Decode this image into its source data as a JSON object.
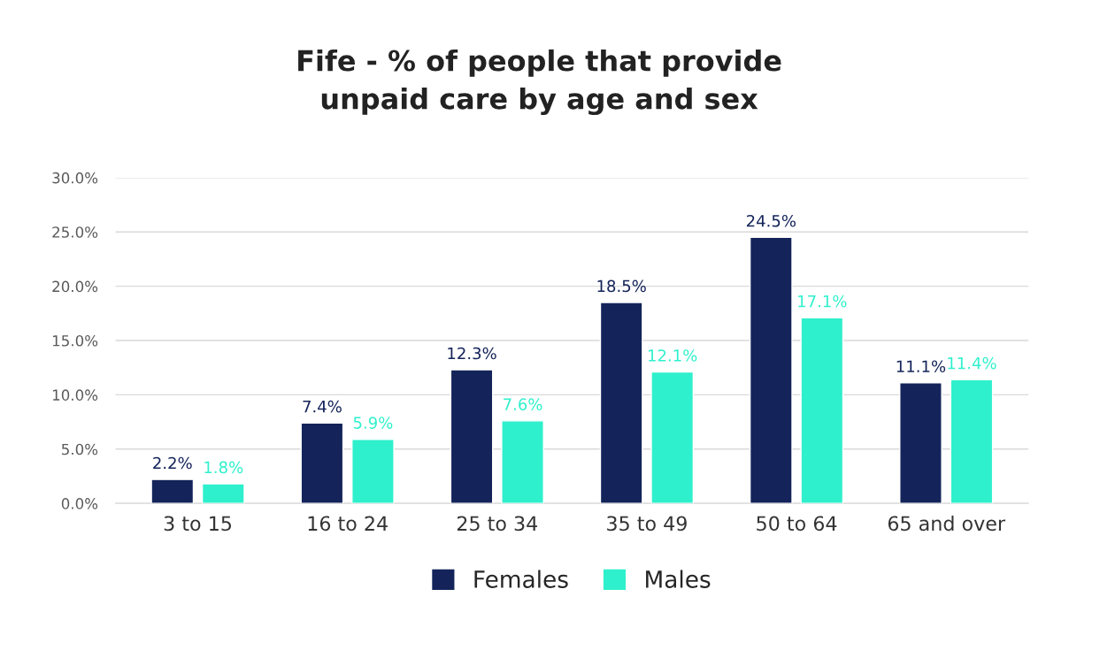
{
  "chart_data": {
    "type": "bar",
    "title": "Fife - % of people that provide\nunpaid care by age and sex",
    "categories": [
      "3 to 15",
      "16 to 24",
      "25 to 34",
      "35 to 49",
      "50 to 64",
      "65 and over"
    ],
    "series": [
      {
        "name": "Females",
        "color": "#14245a",
        "values": [
          2.2,
          7.4,
          12.3,
          18.5,
          24.5,
          11.1
        ],
        "value_labels": [
          "2.2%",
          "7.4%",
          "12.3%",
          "18.5%",
          "24.5%",
          "11.1%"
        ]
      },
      {
        "name": "Males",
        "color": "#2ff0cc",
        "values": [
          1.8,
          5.9,
          7.6,
          12.1,
          17.1,
          11.4
        ],
        "value_labels": [
          "1.8%",
          "5.9%",
          "7.6%",
          "12.1%",
          "17.1%",
          "11.4%"
        ]
      }
    ],
    "ylim": [
      0,
      30
    ],
    "yticks": [
      {
        "value": 0,
        "label": "0.0%"
      },
      {
        "value": 5,
        "label": "5.0%"
      },
      {
        "value": 10,
        "label": "10.0%"
      },
      {
        "value": 15,
        "label": "15.0%"
      },
      {
        "value": 20,
        "label": "20.0%"
      },
      {
        "value": 25,
        "label": "25.0%"
      },
      {
        "value": 30,
        "label": "30.0%"
      }
    ],
    "grid": "y",
    "legend": "bottom"
  }
}
